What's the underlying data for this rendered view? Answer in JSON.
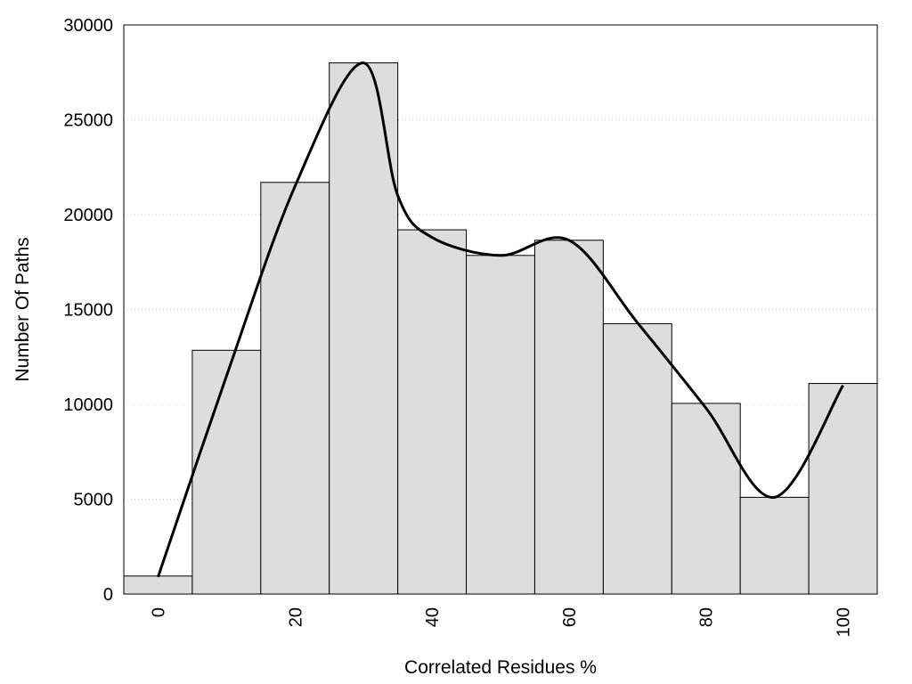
{
  "chart_data": {
    "type": "bar",
    "title": "",
    "xlabel": "Correlated Residues %",
    "ylabel": "Number Of Paths",
    "categories": [
      "0",
      "10",
      "20",
      "30",
      "40",
      "50",
      "60",
      "70",
      "80",
      "90",
      "100"
    ],
    "values": [
      950,
      12850,
      21700,
      28000,
      19200,
      17850,
      18650,
      14250,
      10050,
      5100,
      11100
    ],
    "x_tick_labels": [
      "0",
      "20",
      "40",
      "60",
      "80",
      "100"
    ],
    "y_tick_labels": [
      "0",
      "5000",
      "10000",
      "15000",
      "20000",
      "25000",
      "30000"
    ],
    "ylim": [
      0,
      30000
    ],
    "xlim": [
      -5,
      105
    ],
    "grid": "horizontal dotted",
    "bar_color": "#dddddd",
    "line_color": "#000000",
    "overlay": {
      "type": "line",
      "smooth": true,
      "x": [
        0,
        10,
        20,
        30,
        35,
        40,
        50,
        60,
        70,
        80,
        90,
        100
      ],
      "y": [
        900,
        11500,
        21500,
        28000,
        21000,
        18800,
        17850,
        18650,
        14300,
        9800,
        5100,
        11000
      ]
    }
  }
}
